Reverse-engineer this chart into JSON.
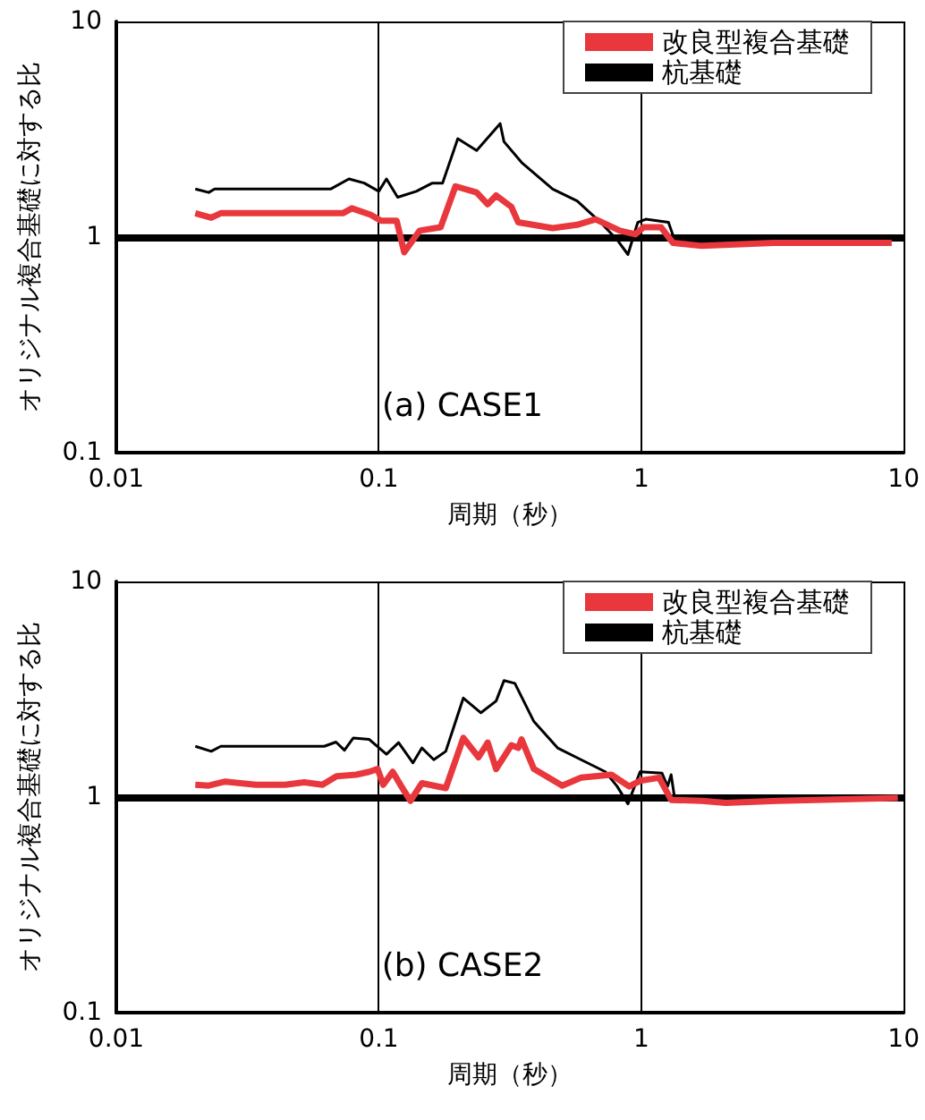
{
  "chart_data": [
    {
      "type": "line",
      "xlabel": "周期（秒）",
      "ylabel": "オリジナル複合基礎に対する比",
      "log": "xy",
      "grid": true,
      "legend": "top right",
      "xlim": [
        0.01,
        10
      ],
      "ylim": [
        0.1,
        10
      ],
      "xticks": [
        0.01,
        0.1,
        1,
        10
      ],
      "yticks": [
        0.1,
        1,
        10
      ],
      "annotations": [
        "(a) CASE1"
      ],
      "ref_lines": [
        {
          "axis": "y",
          "value": 1,
          "label": null,
          "color": "#000000"
        }
      ],
      "series": [
        {
          "name": "改良型複合基礎",
          "color": "#e8383d",
          "x": [
            0.02,
            0.023,
            0.025,
            0.073,
            0.079,
            0.093,
            0.102,
            0.117,
            0.125,
            0.143,
            0.172,
            0.196,
            0.236,
            0.26,
            0.28,
            0.32,
            0.34,
            0.46,
            0.57,
            0.67,
            0.83,
            0.95,
            1.02,
            1.19,
            1.32,
            1.7,
            3.2,
            9
          ],
          "values": [
            1.29,
            1.23,
            1.29,
            1.29,
            1.36,
            1.27,
            1.19,
            1.19,
            0.85,
            1.07,
            1.11,
            1.72,
            1.61,
            1.42,
            1.56,
            1.38,
            1.17,
            1.1,
            1.14,
            1.21,
            1.07,
            1.03,
            1.11,
            1.11,
            0.94,
            0.91,
            0.94,
            0.94
          ]
        },
        {
          "name": "杭基礎",
          "color": "#000000",
          "x": [
            0.02,
            0.0225,
            0.0237,
            0.0655,
            0.077,
            0.088,
            0.1,
            0.107,
            0.118,
            0.139,
            0.16,
            0.175,
            0.2,
            0.236,
            0.29,
            0.3,
            0.35,
            0.46,
            0.57,
            0.7,
            0.81,
            0.89,
            0.97,
            1.04,
            1.27,
            1.34,
            1.54,
            3,
            8
          ],
          "values": [
            1.67,
            1.61,
            1.67,
            1.67,
            1.86,
            1.78,
            1.63,
            1.86,
            1.53,
            1.63,
            1.78,
            1.78,
            2.86,
            2.52,
            3.36,
            2.77,
            2.22,
            1.67,
            1.47,
            1.17,
            0.97,
            0.83,
            1.17,
            1.21,
            1.17,
            0.97,
            0.94,
            0.97,
            0.98
          ]
        }
      ]
    },
    {
      "type": "line",
      "xlabel": "周期（秒）",
      "ylabel": "オリジナル複合基礎に対する比",
      "log": "xy",
      "grid": true,
      "legend": "top right",
      "xlim": [
        0.01,
        10
      ],
      "ylim": [
        0.1,
        10
      ],
      "xticks": [
        0.01,
        0.1,
        1,
        10
      ],
      "yticks": [
        0.1,
        1,
        10
      ],
      "annotations": [
        "(b) CASE2"
      ],
      "ref_lines": [
        {
          "axis": "y",
          "value": 1,
          "label": null,
          "color": "#000000"
        }
      ],
      "series": [
        {
          "name": "改良型複合基礎",
          "color": "#e8383d",
          "x": [
            0.02,
            0.0225,
            0.026,
            0.034,
            0.044,
            0.052,
            0.061,
            0.069,
            0.082,
            0.092,
            0.099,
            0.104,
            0.113,
            0.122,
            0.132,
            0.146,
            0.18,
            0.21,
            0.24,
            0.26,
            0.28,
            0.32,
            0.34,
            0.35,
            0.39,
            0.5,
            0.59,
            0.77,
            0.9,
            0.99,
            1.17,
            1.3,
            1.7,
            2.1,
            3.3,
            9.5
          ],
          "values": [
            1.14,
            1.13,
            1.18,
            1.14,
            1.14,
            1.17,
            1.14,
            1.25,
            1.27,
            1.31,
            1.35,
            1.14,
            1.31,
            1.12,
            0.96,
            1.16,
            1.1,
            1.88,
            1.53,
            1.79,
            1.35,
            1.74,
            1.69,
            1.85,
            1.35,
            1.13,
            1.23,
            1.27,
            1.12,
            1.19,
            1.23,
            0.97,
            0.96,
            0.94,
            0.96,
            0.99
          ]
        },
        {
          "name": "杭基礎",
          "color": "#000000",
          "x": [
            0.02,
            0.023,
            0.025,
            0.062,
            0.0687,
            0.074,
            0.08,
            0.092,
            0.107,
            0.119,
            0.135,
            0.146,
            0.162,
            0.18,
            0.21,
            0.245,
            0.28,
            0.3,
            0.33,
            0.39,
            0.48,
            0.59,
            0.73,
            0.81,
            0.89,
            0.99,
            1.2,
            1.26,
            1.3,
            1.34,
            2.1,
            8
          ],
          "values": [
            1.72,
            1.63,
            1.72,
            1.72,
            1.8,
            1.65,
            1.88,
            1.85,
            1.58,
            1.79,
            1.44,
            1.69,
            1.49,
            1.63,
            2.88,
            2.46,
            2.79,
            3.47,
            3.37,
            2.24,
            1.69,
            1.49,
            1.31,
            1.12,
            0.93,
            1.31,
            1.29,
            1.12,
            1.27,
            0.99,
            0.94,
            0.99
          ]
        }
      ]
    }
  ]
}
